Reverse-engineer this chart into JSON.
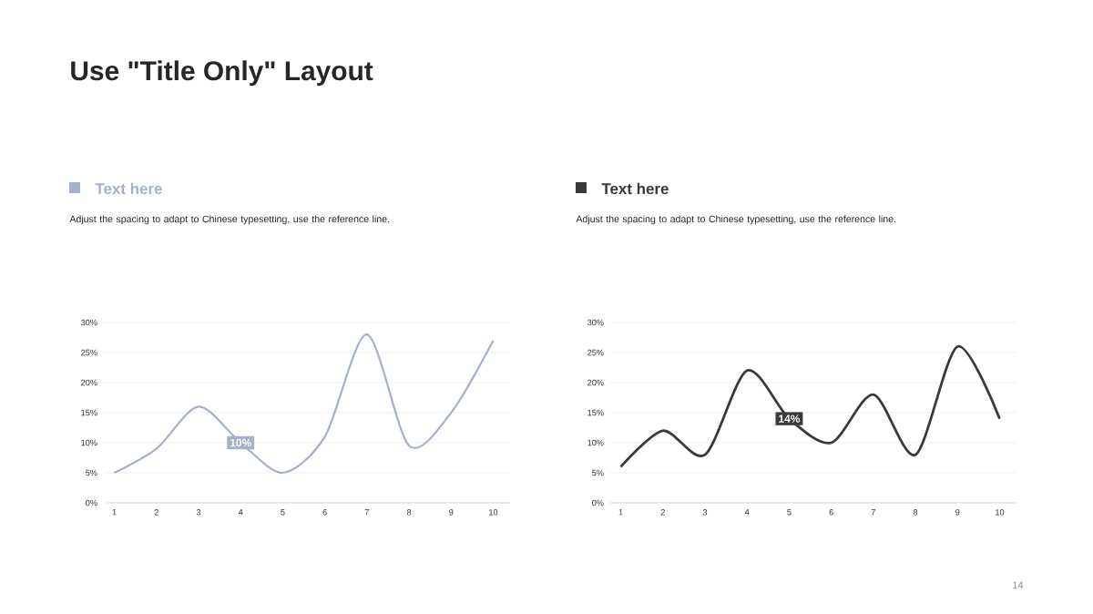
{
  "chart_data": [
    {
      "type": "other",
      "title": "Use \"Title Only\" Layout",
      "annotations": [
        "14"
      ]
    },
    {
      "type": "line",
      "title": "Text here",
      "subtitle": "Adjust the spacing to adapt to Chinese typesetting, use the reference line.",
      "categories": [
        "1",
        "2",
        "3",
        "4",
        "5",
        "6",
        "7",
        "8",
        "9",
        "10"
      ],
      "series": [
        {
          "color": "#a3b1c9",
          "values": [
            5,
            9,
            16,
            10,
            5,
            11,
            28,
            9.5,
            15,
            27
          ],
          "value_labels": [
            null,
            null,
            null,
            "10%",
            null,
            null,
            null,
            null,
            null,
            null
          ]
        }
      ],
      "ylim": [
        0,
        30
      ],
      "yticks": [
        {
          "value": 0,
          "label": "0%"
        },
        {
          "value": 5,
          "label": "5%"
        },
        {
          "value": 10,
          "label": "10%"
        },
        {
          "value": 15,
          "label": "15%"
        },
        {
          "value": 20,
          "label": "20%"
        },
        {
          "value": 25,
          "label": "25%"
        },
        {
          "value": 30,
          "label": "30%"
        }
      ],
      "grid": "y"
    },
    {
      "type": "line",
      "title": "Text here",
      "subtitle": "Adjust the spacing to adapt to Chinese typesetting, use the reference line.",
      "categories": [
        "1",
        "2",
        "3",
        "4",
        "5",
        "6",
        "7",
        "8",
        "9",
        "10"
      ],
      "series": [
        {
          "color": "#3a3a3a",
          "values": [
            6,
            12,
            8,
            22,
            14,
            10,
            18,
            8,
            26,
            14
          ],
          "value_labels": [
            null,
            null,
            null,
            null,
            "14%",
            null,
            null,
            null,
            null,
            null
          ]
        }
      ],
      "ylim": [
        0,
        30
      ],
      "yticks": [
        {
          "value": 0,
          "label": "0%"
        },
        {
          "value": 5,
          "label": "5%"
        },
        {
          "value": 10,
          "label": "10%"
        },
        {
          "value": 15,
          "label": "15%"
        },
        {
          "value": 20,
          "label": "20%"
        },
        {
          "value": 25,
          "label": "25%"
        },
        {
          "value": 30,
          "label": "30%"
        }
      ],
      "grid": "y"
    }
  ]
}
